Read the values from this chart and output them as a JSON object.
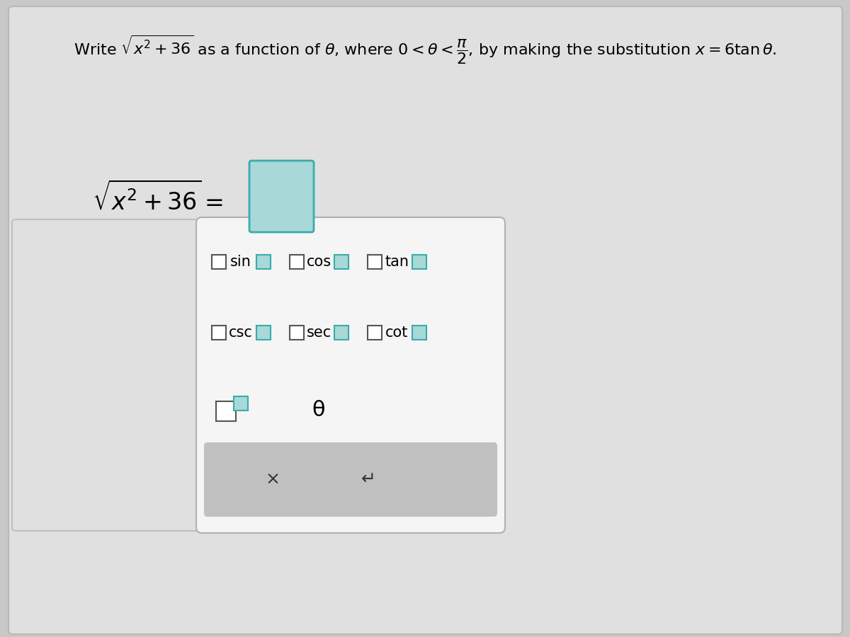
{
  "bg_color": "#c8c8c8",
  "main_card_color": "#e0e0e0",
  "main_card_border": "#b8b8b8",
  "panel_color": "#f5f5f5",
  "panel_border_color": "#b0b0b0",
  "answer_box_fill": "#a8d8d8",
  "answer_box_border": "#3aacac",
  "small_box_white_fill": "#ffffff",
  "small_box_white_border": "#555555",
  "small_box_teal_fill": "#a8d8d8",
  "small_box_teal_border": "#3aacac",
  "bottom_bar_color": "#c0c0c0",
  "row1_items": [
    "sin",
    "cos",
    "tan"
  ],
  "row2_items": [
    "csc",
    "sec",
    "cot"
  ],
  "x_symbol": "×",
  "undo_symbol": "↵",
  "theta_symbol": "θ",
  "title_fontsize": 16,
  "eq_fontsize": 24,
  "trig_fontsize": 15,
  "symbol_fontsize": 18
}
